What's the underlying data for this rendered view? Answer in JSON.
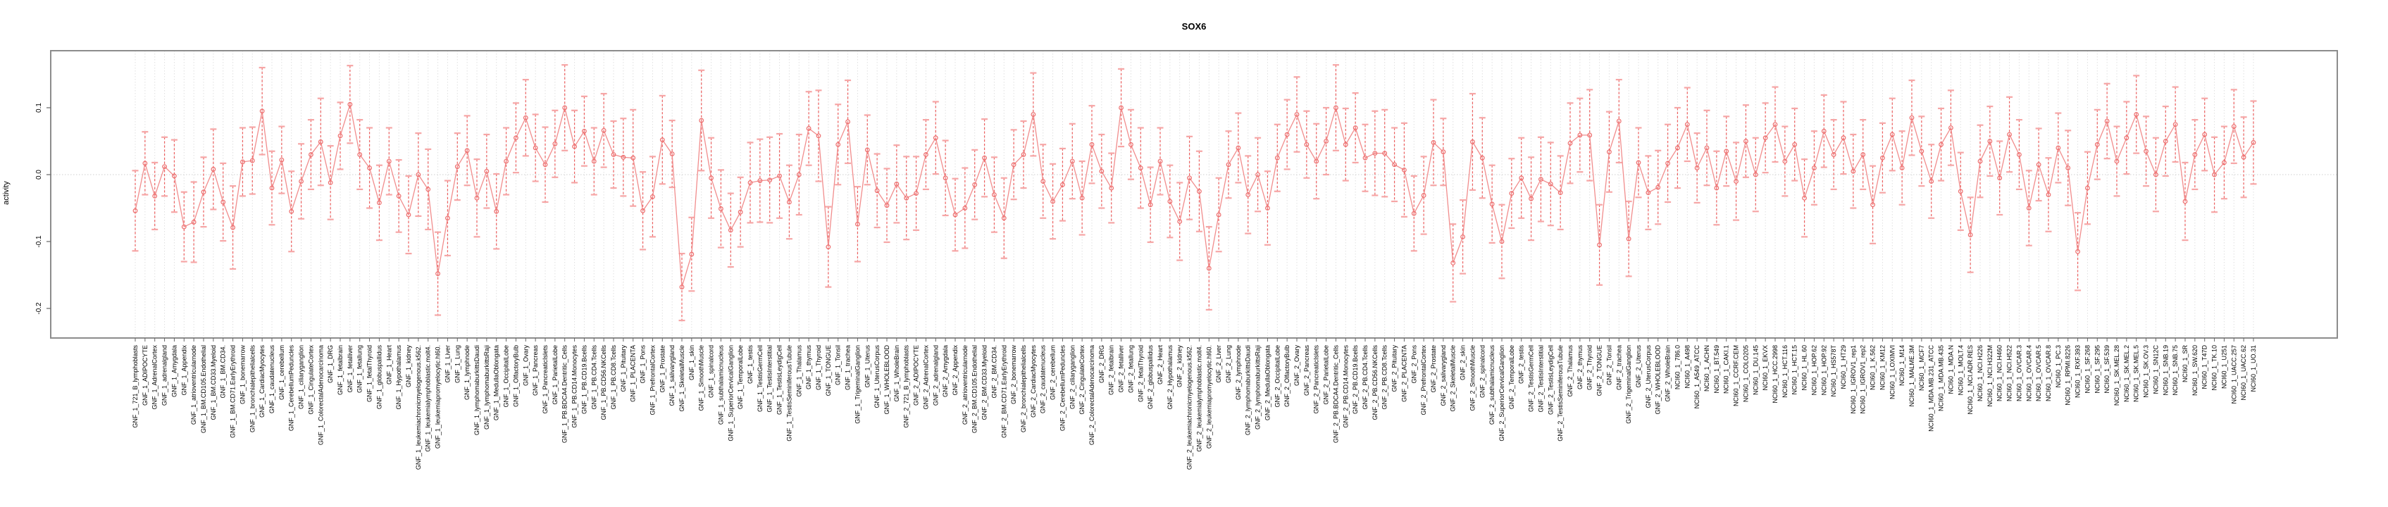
{
  "title": "SOX6",
  "chart_data": {
    "type": "line",
    "title": "SOX6",
    "xlabel": "",
    "ylabel": "activity",
    "ylim": [
      -0.244,
      0.185
    ],
    "yticks": [
      0.1,
      0.0,
      -0.1,
      -0.2
    ],
    "ytick_labels": [
      "0.1",
      "0.0",
      "-0.1",
      "-0.2"
    ],
    "grid": "dotted vertical line per category; dotted horizontal line at y=0",
    "legend_position": "none",
    "marker": "open-circle with dashed vertical CI whiskers and solid caps, points joined by line",
    "colors": {
      "point": "#ed6d6d",
      "segment": "#f18d8d",
      "ci_line": "#ec5f5f",
      "ci_cap": "#f6a6a6",
      "gridline": "#e0e0e0",
      "zero_line": "#cfcfcf",
      "box": "#8c8c8c",
      "tick": "#666666",
      "label": "#000000"
    },
    "categories": [
      "GNF_1_721_B_lymphoblasts",
      "GNF_1_ADIPOCYTE",
      "GNF_1_AdrenalCortex",
      "GNF_1_adrenalgland",
      "GNF_1_Amygdala",
      "GNF_1_Appendix",
      "GNF_1_atrioventricularnode",
      "GNF_1_BM.CD105.Endothelial",
      "GNF_1_BM.CD33.Myeloid",
      "GNF_1_BM.CD34.",
      "GNF_1_BM.CD71.EarlyErythroid",
      "GNF_1_bonemarrow",
      "GNF_1_bronchialepithelialcells",
      "GNF_1_CardiacMyocytes",
      "GNF_1_caudatenucleus",
      "GNF_1_cerebellum",
      "GNF_1_CerebellumPeduncles",
      "GNF_1_ciliaryganglion",
      "GNF_1_CingulateCortex",
      "GNF_1_ColorectalAdenocarcinoma",
      "GNF_1_DRG",
      "GNF_1_fetalbrain",
      "GNF_1_fetalliver",
      "GNF_1_fetallung",
      "GNF_1_fetalThyroid",
      "GNF_1_globuspallidus",
      "GNF_1_Heart",
      "GNF_1_Hypothalamus",
      "GNF_1_kidney",
      "GNF_1_leukemiachronicmyelogenous.k562.",
      "GNF_1_leukemialymphoblastic.molt4.",
      "GNF_1_leukemiapromyelocytic.hl60.",
      "GNF_1_Liver",
      "GNF_1_Lung",
      "GNF_1_lymphnode",
      "GNF_1_lymphomaburkittsDaudi",
      "GNF_1_lymphomaburkittsRaji",
      "GNF_1_MedullaOblongata",
      "GNF_1_OccipitalLobe",
      "GNF_1_OlfactoryBulb",
      "GNF_1_Ovary",
      "GNF_1_Pancreas",
      "GNF_1_PancreaticIslets",
      "GNF_1_ParietalLobe",
      "GNF_1_PB.BDCA4.Dentritic_Cells",
      "GNF_1_PB.CD14.Monocytes",
      "GNF_1_PB.CD19.Bcells",
      "GNF_1_PB.CD4.Tcells",
      "GNF_1_PB.CD56.NKCells",
      "GNF_1_PB.CD8.Tcells",
      "GNF_1_Pituitary",
      "GNF_1_PLACENTA",
      "GNF_1_Pons",
      "GNF_1_PrefrontalCortex",
      "GNF_1_Prostate",
      "GNF_1_salivarygland",
      "GNF_1_SkeletalMuscle",
      "GNF_1_skin",
      "GNF_1_SmoothMuscle",
      "GNF_1_spinalcord",
      "GNF_1_subthalamicnucleus",
      "GNF_1_SuperiorCervicalGanglion",
      "GNF_1_TemporalLobe",
      "GNF_1_testis",
      "GNF_1_TestisGermCell",
      "GNF_1_TestisInterstitial",
      "GNF_1_TestisLeydigCell",
      "GNF_1_TestisSeminiferousTubule",
      "GNF_1_Thalamus",
      "GNF_1_thymus",
      "GNF_1_Thyroid",
      "GNF_1_TONGUE",
      "GNF_1_Tonsil",
      "GNF_1_trachea",
      "GNF_1_TrigeminalGanglion",
      "GNF_1_Uterus",
      "GNF_1_UterusCorpus",
      "GNF_1_WHOLEBLOOD",
      "GNF_1_WholeBrain",
      "GNF_2_721_B_lymphoblasts",
      "GNF_2_ADIPOCYTE",
      "GNF_2_AdrenalCortex",
      "GNF_2_adrenalgland",
      "GNF_2_Amygdala",
      "GNF_2_Appendix",
      "GNF_2_atrioventricularnode",
      "GNF_2_BM.CD105.Endothelial",
      "GNF_2_BM.CD33.Myeloid",
      "GNF_2_BM.CD34.",
      "GNF_2_BM.CD71.EarlyErythroid",
      "GNF_2_bonemarrow",
      "GNF_2_bronchialepithelialcells",
      "GNF_2_CardiacMyocytes",
      "GNF_2_caudatenucleus",
      "GNF_2_cerebellum",
      "GNF_2_CerebellumPeduncles",
      "GNF_2_ciliaryganglion",
      "GNF_2_CingulateCortex",
      "GNF_2_ColorectalAdenocarcinoma",
      "GNF_2_DRG",
      "GNF_2_fetalbrain",
      "GNF_2_fetalliver",
      "GNF_2_fetallung",
      "GNF_2_fetalThyroid",
      "GNF_2_globuspallidus",
      "GNF_2_Heart",
      "GNF_2_Hypothalamus",
      "GNF_2_kidney",
      "GNF_2_leukemiachronicmyelogenous.k562.",
      "GNF_2_leukemialymphoblastic.molt4.",
      "GNF_2_leukemiapromyelocytic.hl60.",
      "GNF_2_Liver",
      "GNF_2_Lung",
      "GNF_2_lymphnode",
      "GNF_2_lymphomaburkittsDaudi",
      "GNF_2_lymphomaburkittsRaji",
      "GNF_2_MedullaOblongata",
      "GNF_2_OccipitalLobe",
      "GNF_2_OlfactoryBulb",
      "GNF_2_Ovary",
      "GNF_2_Pancreas",
      "GNF_2_PancreaticIslets",
      "GNF_2_ParietalLobe",
      "GNF_2_PB.BDCA4.Dentritic_Cells",
      "GNF_2_PB.CD14.Monocytes",
      "GNF_2_PB.CD19.Bcells",
      "GNF_2_PB.CD4.Tcells",
      "GNF_2_PB.CD56.NKCells",
      "GNF_2_PB.CD8.Tcells",
      "GNF_2_Pituitary",
      "GNF_2_PLACENTA",
      "GNF_2_Pons",
      "GNF_2_PrefrontalCortex",
      "GNF_2_Prostate",
      "GNF_2_salivarygland",
      "GNF_2_SkeletalMuscle",
      "GNF_2_skin",
      "GNF_2_SmoothMuscle",
      "GNF_2_spinalcord",
      "GNF_2_subthalamicnucleus",
      "GNF_2_SuperiorCervicalGanglion",
      "GNF_2_TemporalLobe",
      "GNF_2_testis",
      "GNF_2_TestisGermCell",
      "GNF_2_TestisInterstitial",
      "GNF_2_TestisLeydigCell",
      "GNF_2_TestisSeminiferousTubule",
      "GNF_2_Thalamus",
      "GNF_2_thymus",
      "GNF_2_Thyroid",
      "GNF_2_TONGUE",
      "GNF_2_Tonsil",
      "GNF_2_trachea",
      "GNF_2_TrigeminalGanglion",
      "GNF_2_Uterus",
      "GNF_2_UterusCorpus",
      "GNF_2_WHOLEBLOOD",
      "GNF_2_WholeBrain",
      "NCI60_1_786.0",
      "NCI60_1_A498",
      "NCI60_1_A549_ATCC",
      "NCI60_1_ACHN",
      "NCI60_1_BT.549",
      "NCI60_1_CAKI.1",
      "NCI60_1_CCRF.CEM",
      "NCI60_1_COLO205",
      "NCI60_1_DU.145",
      "NCI60_1_EKVX",
      "NCI60_1_HCC.2998",
      "NCI60_1_HCT.116",
      "NCI60_1_HCT.15",
      "NCI60_1_HL.60",
      "NCI60_1_HOP.62",
      "NCI60_1_HOP.92",
      "NCI60_1_HS578T",
      "NCI60_1_HT29",
      "NCI60_1_IGROV1_rep1",
      "NCI60_1_IGROV1_rep2",
      "NCI60_1_K.562",
      "NCI60_1_KM12",
      "NCI60_1_LOXIMVI",
      "NCI60_1_M14",
      "NCI60_1_MALME.3M",
      "NCI60_1_MCF7",
      "NCI60_1_MDA.MB.231_ATCC",
      "NCI60_1_MDA.MB.435",
      "NCI60_1_MDA.N",
      "NCI60_1_MOLT.4",
      "NCI60_1_NCI.ADR.RES",
      "NCI60_1_NCI.H226",
      "NCI60_1_NCI.H322M",
      "NCI60_1_NCI.H460",
      "NCI60_1_NCI.H522",
      "NCI60_1_OVCAR.3",
      "NCI60_1_OVCAR.4",
      "NCI60_1_OVCAR.5",
      "NCI60_1_OVCAR.8",
      "NCI60_1_PC.3",
      "NCI60_1_RPMI.8226",
      "NCI60_1_RXF.393",
      "NCI60_1_SF.268",
      "NCI60_1_SF.295",
      "NCI60_1_SF.539",
      "NCI60_1_SK.MEL.28",
      "NCI60_1_SK.MEL.2",
      "NCI60_1_SK.MEL.5",
      "NCI60_1_SK.OV.3",
      "NCI60_1_SN12C",
      "NCI60_1_SNB.19",
      "NCI60_1_SNB.75",
      "NCI60_1_SR",
      "NCI60_1_SW.620",
      "NCI60_1_T47D",
      "NCI60_1_TK.10",
      "NCI60_1_U251",
      "NCI60_1_UACC.257",
      "NCI60_1_UACC.62",
      "NCI60_1_UO.31"
    ],
    "series": [
      {
        "name": "activity",
        "values": [
          -0.054,
          0.017,
          -0.032,
          0.012,
          -0.002,
          -0.078,
          -0.071,
          -0.026,
          0.008,
          -0.041,
          -0.079,
          0.019,
          0.021,
          0.095,
          -0.02,
          0.022,
          -0.055,
          -0.01,
          0.03,
          0.049,
          -0.012,
          0.058,
          0.105,
          0.03,
          0.01,
          -0.042,
          0.02,
          -0.032,
          -0.06,
          0.0,
          -0.022,
          -0.148,
          -0.065,
          0.012,
          0.036,
          -0.035,
          0.005,
          -0.055,
          0.02,
          0.055,
          0.085,
          0.04,
          0.015,
          0.046,
          0.1,
          0.042,
          0.065,
          0.02,
          0.066,
          0.03,
          0.026,
          0.025,
          -0.054,
          -0.033,
          0.052,
          0.031,
          -0.168,
          -0.119,
          0.081,
          -0.005,
          -0.051,
          -0.083,
          -0.056,
          -0.012,
          -0.009,
          -0.008,
          -0.002,
          -0.041,
          0.0,
          0.069,
          0.058,
          -0.108,
          0.045,
          0.079,
          -0.074,
          0.037,
          -0.024,
          -0.046,
          -0.014,
          -0.035,
          -0.028,
          0.03,
          0.055,
          -0.005,
          -0.06,
          -0.05,
          -0.015,
          0.025,
          -0.03,
          -0.065,
          0.015,
          0.03,
          0.09,
          -0.01,
          -0.04,
          -0.015,
          0.02,
          -0.035,
          0.045,
          0.005,
          -0.02,
          0.1,
          0.045,
          0.01,
          -0.045,
          0.02,
          -0.04,
          -0.07,
          -0.005,
          -0.025,
          -0.14,
          -0.06,
          0.015,
          0.04,
          -0.03,
          0.0,
          -0.05,
          0.025,
          0.06,
          0.09,
          0.045,
          0.02,
          0.05,
          0.1,
          0.045,
          0.07,
          0.025,
          0.032,
          0.032,
          0.015,
          0.007,
          -0.058,
          -0.031,
          0.048,
          0.034,
          -0.132,
          -0.093,
          0.049,
          0.025,
          -0.044,
          -0.1,
          -0.028,
          -0.005,
          -0.036,
          -0.007,
          -0.014,
          -0.027,
          0.047,
          0.059,
          0.059,
          -0.105,
          0.034,
          0.08,
          -0.096,
          0.018,
          -0.027,
          -0.019,
          0.017,
          0.04,
          0.075,
          0.01,
          0.04,
          -0.02,
          0.035,
          -0.01,
          0.05,
          0.0,
          0.055,
          0.075,
          0.02,
          0.045,
          -0.035,
          0.01,
          0.065,
          0.03,
          0.055,
          0.005,
          0.03,
          -0.045,
          0.025,
          0.06,
          0.01,
          0.085,
          0.035,
          -0.01,
          0.045,
          0.07,
          -0.025,
          -0.09,
          0.02,
          0.05,
          -0.005,
          0.06,
          0.03,
          -0.05,
          0.015,
          -0.03,
          0.04,
          0.01,
          -0.115,
          -0.02,
          0.045,
          0.08,
          0.02,
          0.055,
          0.09,
          0.035,
          0.0,
          0.05,
          0.075,
          -0.04,
          0.03,
          0.06,
          0.0,
          0.018,
          0.072,
          0.026,
          0.048
        ]
      }
    ],
    "ci_halfwidth": [
      0.06,
      0.047,
      0.05,
      0.044,
      0.054,
      0.052,
      0.06,
      0.052,
      0.06,
      0.058,
      0.062,
      0.051,
      0.05,
      0.065,
      0.055,
      0.05,
      0.06,
      0.056,
      0.052,
      0.065,
      0.055,
      0.05,
      0.058,
      0.052,
      0.06,
      0.056,
      0.05,
      0.054,
      0.058,
      0.062,
      0.06,
      0.062,
      0.056,
      0.05,
      0.052,
      0.058,
      0.055,
      0.056,
      0.05,
      0.052,
      0.057,
      0.05,
      0.056,
      0.05,
      0.064,
      0.054,
      0.052,
      0.05,
      0.055,
      0.05,
      0.058,
      0.072,
      0.058,
      0.06,
      0.066,
      0.05,
      0.05,
      0.055,
      0.075,
      0.06,
      0.058,
      0.055,
      0.052,
      0.06,
      0.062,
      0.064,
      0.063,
      0.055,
      0.06,
      0.055,
      0.068,
      0.06,
      0.06,
      0.062,
      0.056,
      0.052,
      0.055,
      0.055,
      0.058,
      0.062,
      0.055,
      0.052,
      0.054,
      0.056,
      0.054,
      0.06,
      0.052,
      0.058,
      0.056,
      0.06,
      0.052,
      0.05,
      0.062,
      0.055,
      0.056,
      0.054,
      0.056,
      0.055,
      0.058,
      0.055,
      0.052,
      0.058,
      0.052,
      0.06,
      0.056,
      0.05,
      0.054,
      0.058,
      0.062,
      0.06,
      0.062,
      0.055,
      0.05,
      0.052,
      0.058,
      0.055,
      0.055,
      0.05,
      0.052,
      0.056,
      0.05,
      0.056,
      0.05,
      0.064,
      0.054,
      0.052,
      0.05,
      0.063,
      0.065,
      0.055,
      0.07,
      0.056,
      0.058,
      0.064,
      0.05,
      0.058,
      0.055,
      0.072,
      0.06,
      0.058,
      0.055,
      0.052,
      0.06,
      0.062,
      0.063,
      0.062,
      0.055,
      0.06,
      0.055,
      0.068,
      0.06,
      0.06,
      0.062,
      0.056,
      0.052,
      0.055,
      0.055,
      0.058,
      0.06,
      0.055,
      0.052,
      0.056,
      0.055,
      0.052,
      0.058,
      0.054,
      0.055,
      0.052,
      0.056,
      0.052,
      0.054,
      0.058,
      0.055,
      0.054,
      0.052,
      0.054,
      0.055,
      0.052,
      0.058,
      0.052,
      0.054,
      0.055,
      0.056,
      0.052,
      0.055,
      0.054,
      0.056,
      0.058,
      0.056,
      0.054,
      0.052,
      0.055,
      0.056,
      0.052,
      0.056,
      0.054,
      0.055,
      0.052,
      0.056,
      0.058,
      0.054,
      0.052,
      0.056,
      0.052,
      0.054,
      0.058,
      0.052,
      0.055,
      0.052,
      0.056,
      0.058,
      0.052,
      0.054,
      0.056,
      0.054,
      0.055,
      0.06,
      0.062
    ]
  }
}
